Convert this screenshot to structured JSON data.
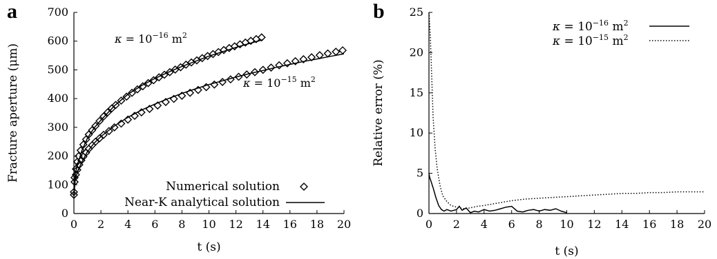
{
  "figure": {
    "panel_a_letter": "a",
    "panel_b_letter": "b"
  },
  "chart_data": [
    {
      "type": "line",
      "panel": "a",
      "xlabel": "t (s)",
      "ylabel": "Fracture aperture (μm)",
      "xlim": [
        0,
        20
      ],
      "ylim": [
        0,
        700
      ],
      "xticks": [
        0,
        2,
        4,
        6,
        8,
        10,
        12,
        14,
        16,
        18,
        20
      ],
      "yticks": [
        0,
        100,
        200,
        300,
        400,
        500,
        600,
        700
      ],
      "legend_position": "bottom-right",
      "legend": [
        {
          "label": "Numerical solution",
          "marker": "diamond"
        },
        {
          "label": "Near-K analytical solution",
          "line": "solid"
        }
      ],
      "annotations": [
        {
          "text": "κ = 10⁻¹⁶ m²",
          "series": "kappa_1e-16"
        },
        {
          "text": "κ = 10⁻¹⁵ m²",
          "series": "kappa_1e-15"
        }
      ],
      "series": [
        {
          "name": "κ = 10⁻¹⁶ m² (numerical)",
          "marker": "diamond",
          "x": [
            0,
            0.05,
            0.15,
            0.25,
            0.35,
            0.5,
            0.7,
            0.9,
            1.1,
            1.35,
            1.6,
            1.9,
            2.2,
            2.5,
            2.8,
            3.1,
            3.5,
            3.9,
            4.3,
            4.7,
            5.1,
            5.5,
            5.9,
            6.3,
            6.7,
            7.1,
            7.5,
            7.9,
            8.3,
            8.7,
            9.1,
            9.5,
            9.9,
            10.3,
            10.7,
            11.1,
            11.5,
            11.9,
            12.3,
            12.7,
            13.1,
            13.5,
            13.9
          ],
          "y": [
            75,
            125,
            155,
            180,
            200,
            220,
            240,
            258,
            275,
            290,
            305,
            322,
            338,
            352,
            366,
            378,
            393,
            407,
            420,
            432,
            443,
            454,
            464,
            474,
            483,
            492,
            501,
            509,
            518,
            526,
            533,
            541,
            548,
            555,
            562,
            569,
            576,
            582,
            589,
            595,
            601,
            607,
            613
          ]
        },
        {
          "name": "κ = 10⁻¹⁶ m² (near-K analytical)",
          "line": "solid",
          "x": [
            0,
            0.1,
            0.3,
            0.6,
            1,
            1.5,
            2,
            3,
            4,
            5,
            6,
            7,
            8,
            9,
            10,
            11,
            12,
            13,
            14
          ],
          "y": [
            70,
            140,
            175,
            220,
            262,
            298,
            325,
            375,
            415,
            445,
            470,
            492,
            512,
            530,
            548,
            563,
            578,
            592,
            605
          ]
        },
        {
          "name": "κ = 10⁻¹⁵ m² (numerical)",
          "marker": "diamond",
          "x": [
            0,
            0.05,
            0.15,
            0.25,
            0.4,
            0.55,
            0.7,
            0.9,
            1.1,
            1.35,
            1.6,
            1.9,
            2.2,
            2.6,
            3.0,
            3.5,
            4.0,
            4.5,
            5.0,
            5.6,
            6.2,
            6.8,
            7.4,
            8.0,
            8.6,
            9.2,
            9.8,
            10.4,
            11.0,
            11.6,
            12.2,
            12.8,
            13.4,
            14.0,
            14.6,
            15.2,
            15.8,
            16.4,
            17.0,
            17.6,
            18.2,
            18.8,
            19.4,
            19.9
          ],
          "y": [
            65,
            110,
            135,
            152,
            170,
            185,
            198,
            212,
            225,
            238,
            250,
            262,
            274,
            287,
            300,
            313,
            327,
            340,
            352,
            364,
            376,
            388,
            399,
            410,
            420,
            430,
            440,
            449,
            458,
            467,
            476,
            484,
            492,
            500,
            508,
            516,
            523,
            530,
            537,
            544,
            551,
            557,
            563,
            568
          ]
        },
        {
          "name": "κ = 10⁻¹⁵ m² (near-K analytical)",
          "line": "solid",
          "x": [
            0,
            0.1,
            0.3,
            0.6,
            1,
            1.5,
            2,
            3,
            4,
            5,
            6,
            7,
            8,
            9,
            10,
            11,
            12,
            13,
            14,
            15,
            16,
            17,
            18,
            19,
            20
          ],
          "y": [
            60,
            120,
            150,
            180,
            215,
            245,
            268,
            305,
            335,
            360,
            381,
            400,
            418,
            434,
            449,
            462,
            475,
            487,
            498,
            509,
            519,
            529,
            538,
            547,
            556
          ]
        }
      ]
    },
    {
      "type": "line",
      "panel": "b",
      "xlabel": "t (s)",
      "ylabel": "Relative error (%)",
      "xlim": [
        0,
        20
      ],
      "ylim": [
        0,
        25
      ],
      "xticks": [
        0,
        2,
        4,
        6,
        8,
        10,
        12,
        14,
        16,
        18,
        20
      ],
      "yticks": [
        0,
        5,
        10,
        15,
        20,
        25
      ],
      "legend_position": "top-right",
      "series": [
        {
          "name": "κ = 10⁻¹⁶ m²",
          "line": "solid",
          "x": [
            0,
            0.05,
            0.15,
            0.3,
            0.5,
            0.7,
            0.9,
            1.1,
            1.3,
            1.6,
            2.0,
            2.2,
            2.4,
            2.7,
            3.0,
            3.3,
            3.6,
            4.0,
            4.4,
            4.8,
            5.2,
            5.6,
            6.0,
            6.4,
            6.8,
            7.2,
            7.6,
            8.0,
            8.4,
            8.8,
            9.2,
            9.6,
            10.0
          ],
          "y": [
            5,
            4.5,
            4,
            3.2,
            2.0,
            1.0,
            0.5,
            0.3,
            0.5,
            0.3,
            0.5,
            0.9,
            0.4,
            0.7,
            0.1,
            0.3,
            0.2,
            0.5,
            0.3,
            0.4,
            0.6,
            0.8,
            0.9,
            0.3,
            0.2,
            0.4,
            0.5,
            0.3,
            0.5,
            0.4,
            0.6,
            0.3,
            0.1
          ]
        },
        {
          "name": "κ = 10⁻¹⁵ m²",
          "line": "dotted",
          "x": [
            0,
            0.1,
            0.2,
            0.3,
            0.45,
            0.6,
            0.8,
            1.0,
            1.3,
            1.6,
            2.0,
            2.5,
            3.0,
            3.5,
            4.0,
            5.0,
            6.0,
            7.0,
            8.0,
            9.0,
            10.0,
            11.0,
            12.0,
            13.0,
            14.0,
            15.0,
            16.0,
            17.0,
            18.0,
            19.0,
            20.0
          ],
          "y": [
            25,
            22,
            17,
            12,
            8,
            5.5,
            3.5,
            2.2,
            1.5,
            1.0,
            0.8,
            0.6,
            0.7,
            0.9,
            1.0,
            1.3,
            1.6,
            1.8,
            1.9,
            2.0,
            2.1,
            2.2,
            2.3,
            2.4,
            2.5,
            2.5,
            2.6,
            2.6,
            2.7,
            2.7,
            2.7
          ]
        }
      ]
    }
  ]
}
